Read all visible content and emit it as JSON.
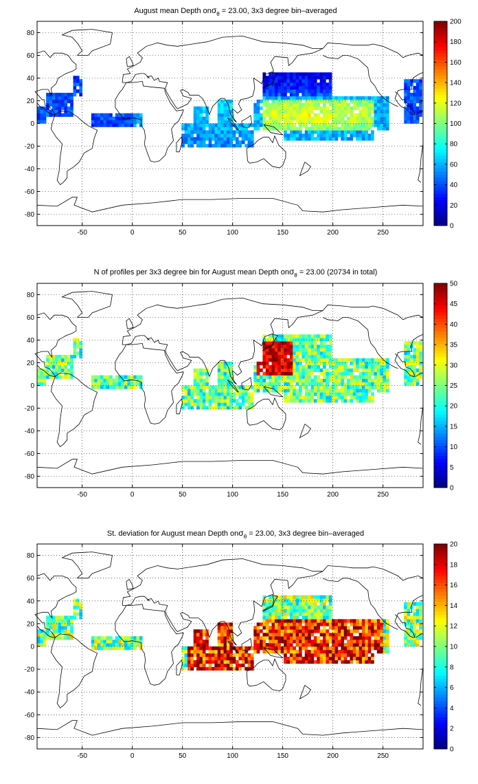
{
  "chart_data": [
    {
      "type": "heatmap",
      "title_parts": [
        "August mean Depth on",
        "σ",
        "θ",
        " = 23.00, 3x3 degree bin–averaged"
      ],
      "xticks": [
        -50,
        0,
        50,
        100,
        150,
        200,
        250
      ],
      "yticks": [
        -80,
        -60,
        -40,
        -20,
        0,
        20,
        40,
        60,
        80
      ],
      "xlim": [
        -95,
        290
      ],
      "ylim": [
        -90,
        90
      ],
      "colorbar": {
        "min": 0,
        "max": 200,
        "ticks": [
          0,
          20,
          40,
          60,
          80,
          100,
          120,
          140,
          160,
          180,
          200
        ]
      },
      "grid": true,
      "colormap": "jet"
    },
    {
      "type": "heatmap",
      "title_parts": [
        "N of profiles per 3x3 degree bin for August mean Depth on",
        "σ",
        "θ",
        " = 23.00 (20734 in total)"
      ],
      "xticks": [
        -50,
        0,
        50,
        100,
        150,
        200,
        250
      ],
      "yticks": [
        -80,
        -60,
        -40,
        -20,
        0,
        20,
        40,
        60,
        80
      ],
      "xlim": [
        -95,
        290
      ],
      "ylim": [
        -90,
        90
      ],
      "colorbar": {
        "min": 0,
        "max": 50,
        "ticks": [
          0,
          5,
          10,
          15,
          20,
          25,
          30,
          35,
          40,
          45,
          50
        ]
      },
      "grid": true,
      "colormap": "jet"
    },
    {
      "type": "heatmap",
      "title_parts": [
        "St. deviation for August mean Depth on",
        "σ",
        "θ",
        " = 23.00, 3x3 degree bin–averaged"
      ],
      "xticks": [
        -50,
        0,
        50,
        100,
        150,
        200,
        250
      ],
      "yticks": [
        -80,
        -60,
        -40,
        -20,
        0,
        20,
        40,
        60,
        80
      ],
      "xlim": [
        -95,
        290
      ],
      "ylim": [
        -90,
        90
      ],
      "colorbar": {
        "min": 0,
        "max": 20,
        "ticks": [
          0,
          2,
          4,
          6,
          8,
          10,
          12,
          14,
          16,
          18,
          20
        ]
      },
      "grid": true,
      "colormap": "jet"
    }
  ]
}
